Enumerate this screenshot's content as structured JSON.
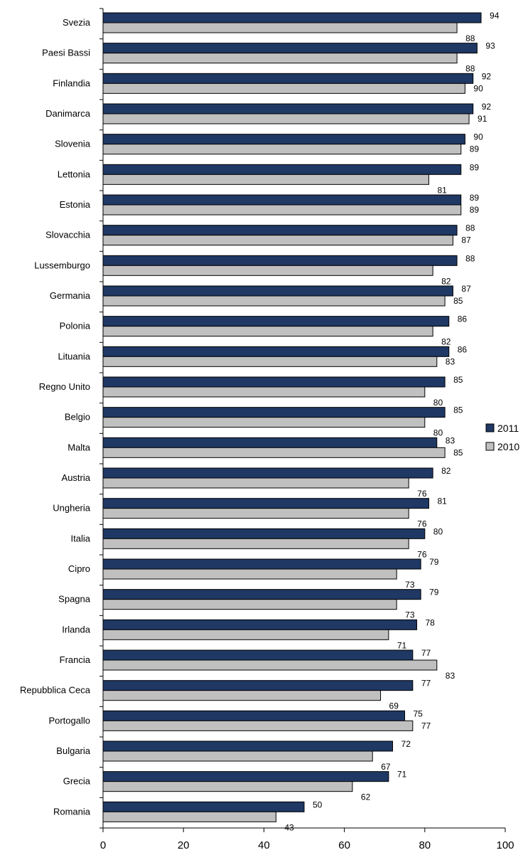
{
  "chart_data": {
    "type": "bar",
    "orientation": "horizontal",
    "categories": [
      "Svezia",
      "Paesi Bassi",
      "Finlandia",
      "Danimarca",
      "Slovenia",
      "Lettonia",
      "Estonia",
      "Slovacchia",
      "Lussemburgo",
      "Germania",
      "Polonia",
      "Lituania",
      "Regno Unito",
      "Belgio",
      "Malta",
      "Austria",
      "Ungheria",
      "Italia",
      "Cipro",
      "Spagna",
      "Irlanda",
      "Francia",
      "Repubblica Ceca",
      "Portogallo",
      "Bulgaria",
      "Grecia",
      "Romania"
    ],
    "series": [
      {
        "name": "2011",
        "color": "#1f3864",
        "values": [
          94,
          93,
          92,
          92,
          90,
          89,
          89,
          88,
          88,
          87,
          86,
          86,
          85,
          85,
          83,
          82,
          81,
          80,
          79,
          79,
          78,
          77,
          77,
          75,
          72,
          71,
          50
        ]
      },
      {
        "name": "2010",
        "color": "#c0c0c0",
        "values": [
          88,
          88,
          90,
          91,
          89,
          81,
          89,
          87,
          82,
          85,
          82,
          83,
          80,
          80,
          85,
          76,
          76,
          76,
          73,
          73,
          71,
          83,
          69,
          77,
          67,
          62,
          43
        ]
      }
    ],
    "xlim": [
      0,
      100
    ],
    "xticks": [
      "0",
      "20",
      "40",
      "60",
      "80",
      "100"
    ],
    "legend_position": "right",
    "grid": false
  }
}
